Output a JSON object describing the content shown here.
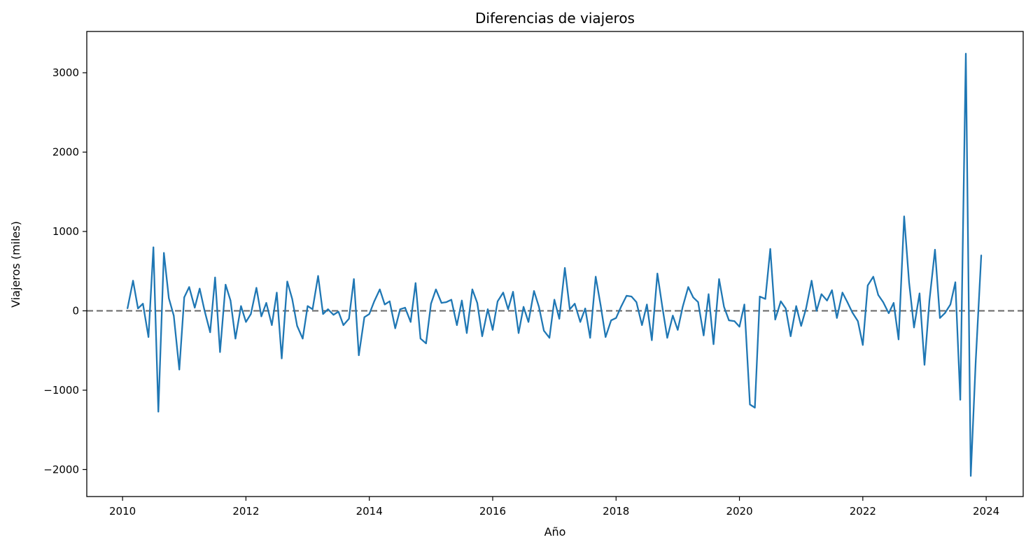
{
  "chart_data": {
    "type": "line",
    "title": "Diferencias de viajeros",
    "xlabel": "Año",
    "ylabel": "Viajeros (miles)",
    "x_ticks": [
      2010,
      2012,
      2014,
      2016,
      2018,
      2020,
      2022,
      2024
    ],
    "y_ticks": [
      -2000,
      -1000,
      0,
      1000,
      2000,
      3000
    ],
    "xlim": [
      2009.42,
      2024.6
    ],
    "ylim": [
      -2340,
      3520
    ],
    "grid": false,
    "reference_line": {
      "y": 0,
      "style": "dashed",
      "color": "#555555"
    },
    "series": [
      {
        "color": "#1f77b4",
        "x": [
          2010.08,
          2010.17,
          2010.25,
          2010.33,
          2010.42,
          2010.5,
          2010.58,
          2010.67,
          2010.75,
          2010.83,
          2010.92,
          2011.0,
          2011.08,
          2011.17,
          2011.25,
          2011.33,
          2011.42,
          2011.5,
          2011.58,
          2011.67,
          2011.75,
          2011.83,
          2011.92,
          2012.0,
          2012.08,
          2012.17,
          2012.25,
          2012.33,
          2012.42,
          2012.5,
          2012.58,
          2012.67,
          2012.75,
          2012.83,
          2012.92,
          2013.0,
          2013.08,
          2013.17,
          2013.25,
          2013.33,
          2013.42,
          2013.5,
          2013.58,
          2013.67,
          2013.75,
          2013.83,
          2013.92,
          2014.0,
          2014.08,
          2014.17,
          2014.25,
          2014.33,
          2014.42,
          2014.5,
          2014.58,
          2014.67,
          2014.75,
          2014.83,
          2014.92,
          2015.0,
          2015.08,
          2015.17,
          2015.25,
          2015.33,
          2015.42,
          2015.5,
          2015.58,
          2015.67,
          2015.75,
          2015.83,
          2015.92,
          2016.0,
          2016.08,
          2016.17,
          2016.25,
          2016.33,
          2016.42,
          2016.5,
          2016.58,
          2016.67,
          2016.75,
          2016.83,
          2016.92,
          2017.0,
          2017.08,
          2017.17,
          2017.25,
          2017.33,
          2017.42,
          2017.5,
          2017.58,
          2017.67,
          2017.75,
          2017.83,
          2017.92,
          2018.0,
          2018.08,
          2018.17,
          2018.25,
          2018.33,
          2018.42,
          2018.5,
          2018.58,
          2018.67,
          2018.75,
          2018.83,
          2018.92,
          2019.0,
          2019.08,
          2019.17,
          2019.25,
          2019.33,
          2019.42,
          2019.5,
          2019.58,
          2019.67,
          2019.75,
          2019.83,
          2019.92,
          2020.0,
          2020.08,
          2020.17,
          2020.25,
          2020.33,
          2020.42,
          2020.5,
          2020.58,
          2020.67,
          2020.75,
          2020.83,
          2020.92,
          2021.0,
          2021.08,
          2021.17,
          2021.25,
          2021.33,
          2021.42,
          2021.5,
          2021.58,
          2021.67,
          2021.75,
          2021.83,
          2021.92,
          2022.0,
          2022.08,
          2022.17,
          2022.25,
          2022.33,
          2022.42,
          2022.5,
          2022.58,
          2022.67,
          2022.75,
          2022.83,
          2022.92,
          2023.0,
          2023.08,
          2023.17,
          2023.25,
          2023.33,
          2023.42,
          2023.5,
          2023.58,
          2023.67,
          2023.75,
          2023.83,
          2023.92
        ],
        "y": [
          30,
          380,
          30,
          90,
          -330,
          800,
          -1270,
          730,
          160,
          -60,
          -740,
          170,
          300,
          40,
          280,
          0,
          -270,
          420,
          -520,
          330,
          130,
          -350,
          60,
          -140,
          -40,
          290,
          -70,
          100,
          -180,
          230,
          -600,
          370,
          150,
          -190,
          -350,
          60,
          20,
          440,
          -40,
          20,
          -50,
          -10,
          -180,
          -100,
          400,
          -560,
          -80,
          -40,
          120,
          270,
          80,
          120,
          -220,
          20,
          40,
          -140,
          350,
          -350,
          -410,
          90,
          270,
          100,
          110,
          140,
          -180,
          130,
          -280,
          270,
          100,
          -320,
          20,
          -240,
          120,
          230,
          20,
          240,
          -280,
          50,
          -140,
          250,
          50,
          -250,
          -340,
          140,
          -100,
          540,
          20,
          90,
          -140,
          30,
          -340,
          430,
          70,
          -330,
          -120,
          -90,
          50,
          190,
          180,
          110,
          -180,
          80,
          -370,
          470,
          50,
          -340,
          -60,
          -240,
          50,
          300,
          170,
          110,
          -310,
          210,
          -420,
          400,
          50,
          -120,
          -130,
          -200,
          80,
          -1180,
          -1220,
          180,
          150,
          780,
          -110,
          120,
          30,
          -320,
          60,
          -190,
          30,
          380,
          0,
          210,
          130,
          260,
          -90,
          230,
          110,
          -20,
          -130,
          -430,
          320,
          430,
          200,
          110,
          -30,
          100,
          -360,
          1190,
          360,
          -210,
          220,
          -680,
          130,
          770,
          -90,
          -30,
          80,
          360,
          -1120,
          3240,
          -2080,
          -640,
          700
        ]
      }
    ]
  }
}
